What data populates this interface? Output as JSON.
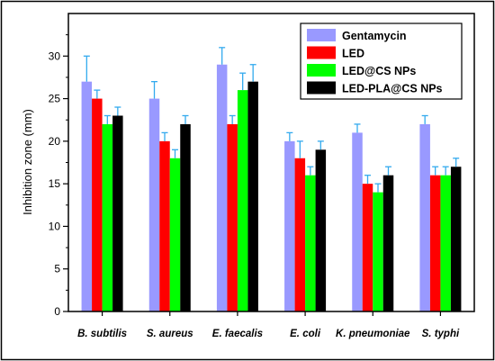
{
  "chart_data": {
    "type": "bar",
    "title": "",
    "xlabel": "",
    "ylabel": "Inhibition zone (mm)",
    "ylim": [
      0,
      35
    ],
    "yticks": [
      0,
      5,
      10,
      15,
      20,
      25,
      30
    ],
    "grid": false,
    "legend_position": "top-right",
    "categories": [
      "B. subtilis",
      "S. aureus",
      "E. faecalis",
      "E. coli",
      "K. pneumoniae",
      "S. typhi"
    ],
    "series": [
      {
        "name": "Gentamycin",
        "color": "#9999ff",
        "values": [
          27,
          25,
          29,
          20,
          21,
          22
        ],
        "errors": [
          3,
          2,
          2,
          1,
          1,
          1
        ]
      },
      {
        "name": "LED",
        "color": "#ff0000",
        "values": [
          25,
          20,
          22,
          18,
          15,
          16
        ],
        "errors": [
          1,
          1,
          1,
          2,
          1,
          1
        ]
      },
      {
        "name": "LED@CS NPs",
        "color": "#00ff00",
        "values": [
          22,
          18,
          26,
          16,
          14,
          16
        ],
        "errors": [
          1,
          1,
          2,
          1,
          1,
          1
        ]
      },
      {
        "name": "LED-PLA@CS NPs",
        "color": "#000000",
        "values": [
          23,
          22,
          27,
          19,
          16,
          17
        ],
        "errors": [
          1,
          1,
          2,
          1,
          1,
          1
        ]
      }
    ],
    "error_bar_color": "#33aaee"
  }
}
